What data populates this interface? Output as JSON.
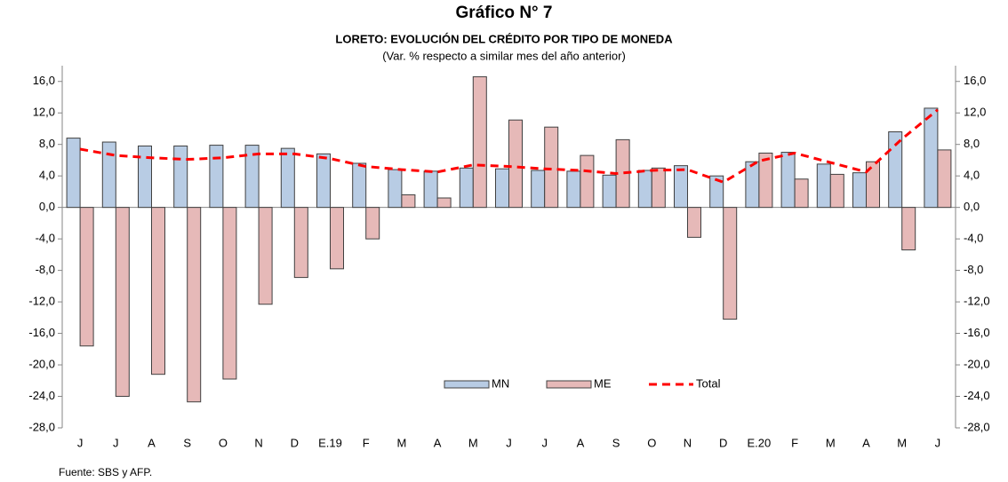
{
  "chart_data": {
    "type": "bar",
    "title": "Gráfico N° 7",
    "subtitle": "LORETO: EVOLUCIÓN DEL CRÉDITO POR TIPO DE MONEDA",
    "note": "(Var. % respecto a similar mes del año anterior)",
    "source": "Fuente: SBS y AFP.",
    "categories": [
      "J",
      "J",
      "A",
      "S",
      "O",
      "N",
      "D",
      "E.19",
      "F",
      "M",
      "A",
      "M",
      "J",
      "J",
      "A",
      "S",
      "O",
      "N",
      "D",
      "E.20",
      "F",
      "M",
      "A",
      "M",
      "J"
    ],
    "series": [
      {
        "name": "MN",
        "type": "bar",
        "color": "#b8cce4",
        "values": [
          8.8,
          8.3,
          7.8,
          7.8,
          7.9,
          7.9,
          7.5,
          6.8,
          5.6,
          4.8,
          4.6,
          5.0,
          4.9,
          4.7,
          4.6,
          4.1,
          4.7,
          5.3,
          4.0,
          5.8,
          7.0,
          5.5,
          4.4,
          9.6,
          12.6
        ]
      },
      {
        "name": "ME",
        "type": "bar",
        "color": "#e6b9b8",
        "values": [
          -17.6,
          -24.0,
          -21.2,
          -24.7,
          -21.8,
          -12.3,
          -8.9,
          -7.8,
          -4.0,
          1.6,
          1.2,
          16.6,
          11.1,
          10.2,
          6.6,
          8.6,
          5.0,
          -3.8,
          -14.2,
          6.9,
          3.6,
          4.2,
          5.8,
          -5.4,
          7.3
        ]
      },
      {
        "name": "Total",
        "type": "line",
        "color": "#ff0000",
        "values": [
          7.4,
          6.6,
          6.3,
          6.1,
          6.3,
          6.8,
          6.8,
          6.2,
          5.2,
          4.8,
          4.5,
          5.4,
          5.2,
          4.9,
          4.7,
          4.3,
          4.7,
          4.8,
          3.2,
          5.9,
          6.9,
          5.7,
          4.5,
          8.7,
          12.4
        ]
      }
    ],
    "ylim": [
      -28,
      18
    ],
    "yticks": [
      {
        "value": -28,
        "label": "-28,0"
      },
      {
        "value": -24,
        "label": "-24,0"
      },
      {
        "value": -20,
        "label": "-20,0"
      },
      {
        "value": -16,
        "label": "-16,0"
      },
      {
        "value": -12,
        "label": "-12,0"
      },
      {
        "value": -8,
        "label": "-8,0"
      },
      {
        "value": -4,
        "label": "-4,0"
      },
      {
        "value": 0,
        "label": "0,0"
      },
      {
        "value": 4,
        "label": "4,0"
      },
      {
        "value": 8,
        "label": "8,0"
      },
      {
        "value": 12,
        "label": "12,0"
      },
      {
        "value": 16,
        "label": "16,0"
      }
    ],
    "grid": false
  }
}
